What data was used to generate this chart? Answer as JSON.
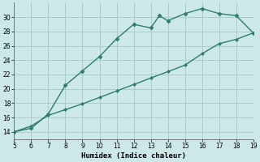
{
  "upper_x": [
    5,
    6,
    7,
    8,
    9,
    10,
    11,
    12,
    13,
    13.5,
    14,
    15,
    16,
    17,
    18,
    19
  ],
  "upper_y": [
    14,
    14.5,
    16.5,
    20.5,
    22.5,
    24.5,
    27,
    29,
    28.5,
    30.2,
    29.5,
    30.5,
    31.2,
    30.5,
    30.2,
    27.8
  ],
  "lower_x": [
    5,
    6,
    7,
    8,
    9,
    10,
    11,
    12,
    13,
    14,
    15,
    16,
    17,
    18,
    19
  ],
  "lower_y": [
    14,
    14.8,
    16.3,
    17.1,
    17.9,
    18.8,
    19.7,
    20.6,
    21.5,
    22.4,
    23.3,
    24.9,
    26.3,
    26.9,
    27.8
  ],
  "line_color": "#2e7d6e",
  "bg_color": "#cce8e8",
  "grid_color": "#aacccc",
  "xlabel": "Humidex (Indice chaleur)",
  "xlim": [
    5,
    19
  ],
  "ylim": [
    13,
    32
  ],
  "xticks": [
    5,
    6,
    7,
    8,
    9,
    10,
    11,
    12,
    13,
    14,
    15,
    16,
    17,
    18,
    19
  ],
  "yticks": [
    14,
    16,
    18,
    20,
    22,
    24,
    26,
    28,
    30
  ],
  "marker_upper": "D",
  "marker_lower": "D",
  "markersize_upper": 2.5,
  "markersize_lower": 2.0,
  "linewidth": 1.0
}
